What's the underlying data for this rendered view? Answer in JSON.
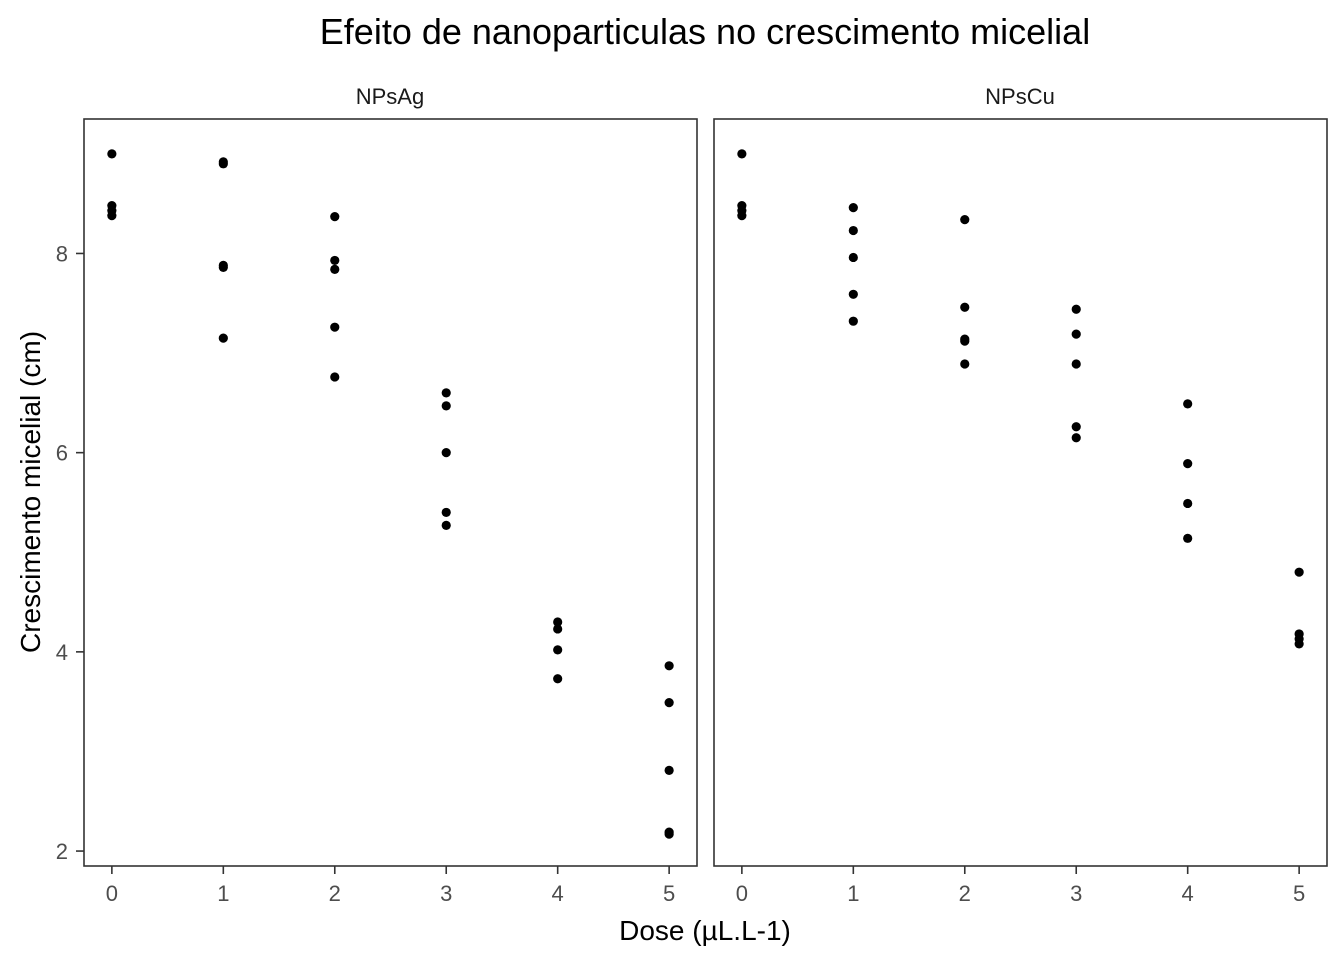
{
  "chart_data": {
    "type": "scatter",
    "title": "Efeito de nanoparticulas no crescimento micelial",
    "xlabel": "Dose (µL.L-1)",
    "ylabel": "Crescimento micelial (cm)",
    "x_ticks": [
      "0",
      "1",
      "2",
      "3",
      "4",
      "5"
    ],
    "y_ticks": [
      "2",
      "4",
      "6",
      "8"
    ],
    "xlim": [
      -0.25,
      5.25
    ],
    "ylim": [
      1.85,
      9.35
    ],
    "grid": false,
    "legend": "none",
    "point_color": "#000000",
    "panels": [
      {
        "name": "NPsAg",
        "points": [
          {
            "x": 0,
            "y": 9.0
          },
          {
            "x": 0,
            "y": 8.48
          },
          {
            "x": 0,
            "y": 8.43
          },
          {
            "x": 0,
            "y": 8.38
          },
          {
            "x": 1,
            "y": 8.92
          },
          {
            "x": 1,
            "y": 8.9
          },
          {
            "x": 1,
            "y": 7.88
          },
          {
            "x": 1,
            "y": 7.86
          },
          {
            "x": 1,
            "y": 7.15
          },
          {
            "x": 2,
            "y": 8.37
          },
          {
            "x": 2,
            "y": 7.93
          },
          {
            "x": 2,
            "y": 7.84
          },
          {
            "x": 2,
            "y": 7.26
          },
          {
            "x": 2,
            "y": 6.76
          },
          {
            "x": 3,
            "y": 6.6
          },
          {
            "x": 3,
            "y": 6.47
          },
          {
            "x": 3,
            "y": 6.0
          },
          {
            "x": 3,
            "y": 5.4
          },
          {
            "x": 3,
            "y": 5.27
          },
          {
            "x": 4,
            "y": 4.3
          },
          {
            "x": 4,
            "y": 4.23
          },
          {
            "x": 4,
            "y": 4.02
          },
          {
            "x": 4,
            "y": 3.73
          },
          {
            "x": 5,
            "y": 3.86
          },
          {
            "x": 5,
            "y": 3.49
          },
          {
            "x": 5,
            "y": 2.81
          },
          {
            "x": 5,
            "y": 2.19
          },
          {
            "x": 5,
            "y": 2.17
          }
        ]
      },
      {
        "name": "NPsCu",
        "points": [
          {
            "x": 0,
            "y": 9.0
          },
          {
            "x": 0,
            "y": 8.48
          },
          {
            "x": 0,
            "y": 8.43
          },
          {
            "x": 0,
            "y": 8.38
          },
          {
            "x": 1,
            "y": 8.46
          },
          {
            "x": 1,
            "y": 8.23
          },
          {
            "x": 1,
            "y": 7.96
          },
          {
            "x": 1,
            "y": 7.59
          },
          {
            "x": 1,
            "y": 7.32
          },
          {
            "x": 2,
            "y": 8.34
          },
          {
            "x": 2,
            "y": 7.46
          },
          {
            "x": 2,
            "y": 7.14
          },
          {
            "x": 2,
            "y": 7.12
          },
          {
            "x": 2,
            "y": 6.89
          },
          {
            "x": 3,
            "y": 7.44
          },
          {
            "x": 3,
            "y": 7.19
          },
          {
            "x": 3,
            "y": 6.89
          },
          {
            "x": 3,
            "y": 6.26
          },
          {
            "x": 3,
            "y": 6.15
          },
          {
            "x": 4,
            "y": 6.49
          },
          {
            "x": 4,
            "y": 5.89
          },
          {
            "x": 4,
            "y": 5.49
          },
          {
            "x": 4,
            "y": 5.14
          },
          {
            "x": 5,
            "y": 4.8
          },
          {
            "x": 5,
            "y": 4.18
          },
          {
            "x": 5,
            "y": 4.13
          },
          {
            "x": 5,
            "y": 4.08
          }
        ]
      }
    ]
  }
}
